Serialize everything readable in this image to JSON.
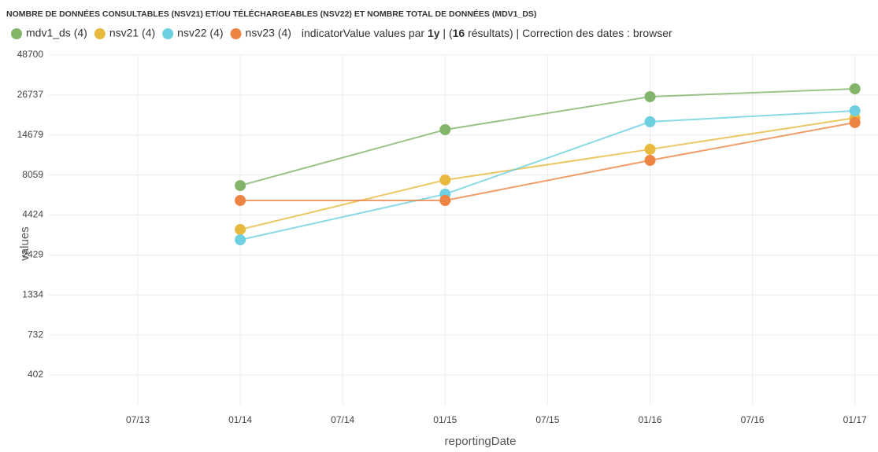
{
  "chart_data": {
    "type": "line",
    "title": "NOMBRE DE DONNÉES CONSULTABLES (NSV21) ET/OU TÉLÉCHARGEABLES (NSV22) ET NOMBRE TOTAL DE DONNÉES (MDV1_DS)",
    "legend_note_parts": [
      "indicatorValue values par ",
      "1y",
      " | (",
      "16",
      " résultats) | Correction des dates : browser"
    ],
    "x_label": "reportingDate",
    "y_label": "values",
    "x": [
      "01/14",
      "01/15",
      "01/16",
      "01/17"
    ],
    "xticks": [
      "07/13",
      "01/14",
      "07/14",
      "01/15",
      "07/15",
      "01/16",
      "07/16",
      "01/17"
    ],
    "log_scale": true,
    "grid": true,
    "ylim": [
      257,
      48700
    ],
    "yticks": [
      402,
      732,
      1334,
      2429,
      4424,
      8059,
      14679,
      26737,
      48700
    ],
    "series": [
      {
        "name": "mdv1_ds (4)",
        "color": "#82b46a",
        "values": [
          6880,
          15900,
          26080,
          29340
        ]
      },
      {
        "name": "nsv21 (4)",
        "color": "#e7b93f",
        "values": [
          3560,
          7480,
          11850,
          18960
        ]
      },
      {
        "name": "nsv22 (4)",
        "color": "#6dcfe0",
        "values": [
          3050,
          6050,
          17900,
          21100
        ]
      },
      {
        "name": "nsv23 (4)",
        "color": "#ee8443",
        "values": [
          5500,
          5500,
          10040,
          17700
        ]
      }
    ]
  }
}
